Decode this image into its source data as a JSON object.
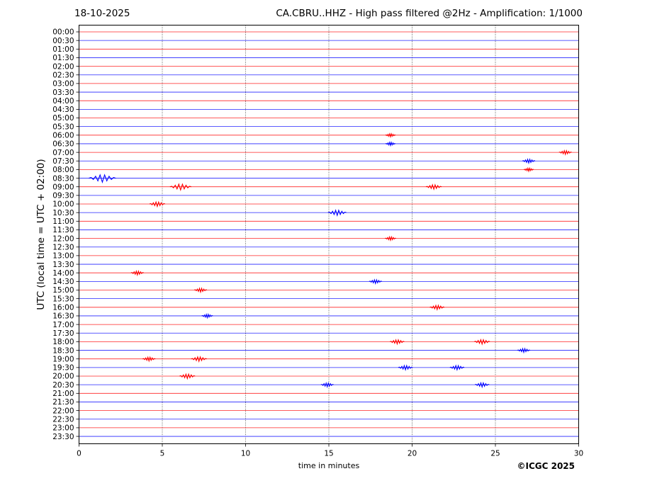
{
  "header": {
    "date": "18-10-2025",
    "title": "CA.CBRU..HHZ - High pass filtered @2Hz - Amplification: 1/1000"
  },
  "footer": {
    "copyright": "©ICGC 2025"
  },
  "chart_data": {
    "type": "line",
    "title": "CA.CBRU..HHZ - High pass filtered @2Hz - Amplification: 1/1000",
    "xlabel": "time in minutes",
    "ylabel": "UTC (local time = UTC + 02:00)",
    "xlim": [
      0,
      30
    ],
    "x_ticks": [
      0,
      5,
      10,
      15,
      20,
      25,
      30
    ],
    "grid": "vertical dotted lines at 5-minute intervals",
    "legend": "none",
    "colors": {
      "even_rows": "#ff0000",
      "odd_rows": "#0000ff"
    },
    "row_labels": [
      "00:00",
      "00:30",
      "01:00",
      "01:30",
      "02:00",
      "02:30",
      "03:00",
      "03:30",
      "04:00",
      "04:30",
      "05:00",
      "05:30",
      "06:00",
      "06:30",
      "07:00",
      "07:30",
      "08:00",
      "08:30",
      "09:00",
      "09:30",
      "10:00",
      "10:30",
      "11:00",
      "11:30",
      "12:00",
      "12:30",
      "13:00",
      "13:30",
      "14:00",
      "14:30",
      "15:00",
      "15:30",
      "16:00",
      "16:30",
      "17:00",
      "17:30",
      "18:00",
      "18:30",
      "19:00",
      "19:30",
      "20:00",
      "20:30",
      "21:00",
      "21:30",
      "22:00",
      "22:30",
      "23:00",
      "23:30"
    ],
    "events": [
      {
        "row": "06:00",
        "minute": 18.7,
        "amplitude": 1.0
      },
      {
        "row": "06:30",
        "minute": 18.7,
        "amplitude": 1.0
      },
      {
        "row": "07:00",
        "minute": 29.2,
        "amplitude": 1.5
      },
      {
        "row": "07:30",
        "minute": 27.0,
        "amplitude": 1.5
      },
      {
        "row": "08:00",
        "minute": 27.0,
        "amplitude": 1.0
      },
      {
        "row": "08:30",
        "minute": 1.4,
        "amplitude": 4.0
      },
      {
        "row": "09:00",
        "minute": 6.1,
        "amplitude": 3.0
      },
      {
        "row": "09:00",
        "minute": 21.3,
        "amplitude": 2.0
      },
      {
        "row": "10:00",
        "minute": 4.7,
        "amplitude": 2.0
      },
      {
        "row": "10:30",
        "minute": 15.5,
        "amplitude": 2.5
      },
      {
        "row": "12:00",
        "minute": 18.7,
        "amplitude": 1.2
      },
      {
        "row": "14:00",
        "minute": 3.5,
        "amplitude": 1.5
      },
      {
        "row": "14:30",
        "minute": 17.8,
        "amplitude": 1.5
      },
      {
        "row": "15:00",
        "minute": 7.3,
        "amplitude": 1.5
      },
      {
        "row": "16:00",
        "minute": 21.5,
        "amplitude": 1.8
      },
      {
        "row": "16:30",
        "minute": 7.7,
        "amplitude": 1.2
      },
      {
        "row": "18:00",
        "minute": 19.1,
        "amplitude": 1.8
      },
      {
        "row": "18:00",
        "minute": 24.2,
        "amplitude": 2.0
      },
      {
        "row": "18:30",
        "minute": 26.7,
        "amplitude": 1.5
      },
      {
        "row": "19:00",
        "minute": 4.2,
        "amplitude": 1.5
      },
      {
        "row": "19:00",
        "minute": 7.2,
        "amplitude": 2.0
      },
      {
        "row": "19:30",
        "minute": 19.6,
        "amplitude": 1.8
      },
      {
        "row": "19:30",
        "minute": 22.7,
        "amplitude": 1.8
      },
      {
        "row": "20:00",
        "minute": 6.5,
        "amplitude": 2.0
      },
      {
        "row": "20:30",
        "minute": 14.9,
        "amplitude": 1.5
      },
      {
        "row": "20:30",
        "minute": 24.2,
        "amplitude": 1.8
      }
    ]
  }
}
